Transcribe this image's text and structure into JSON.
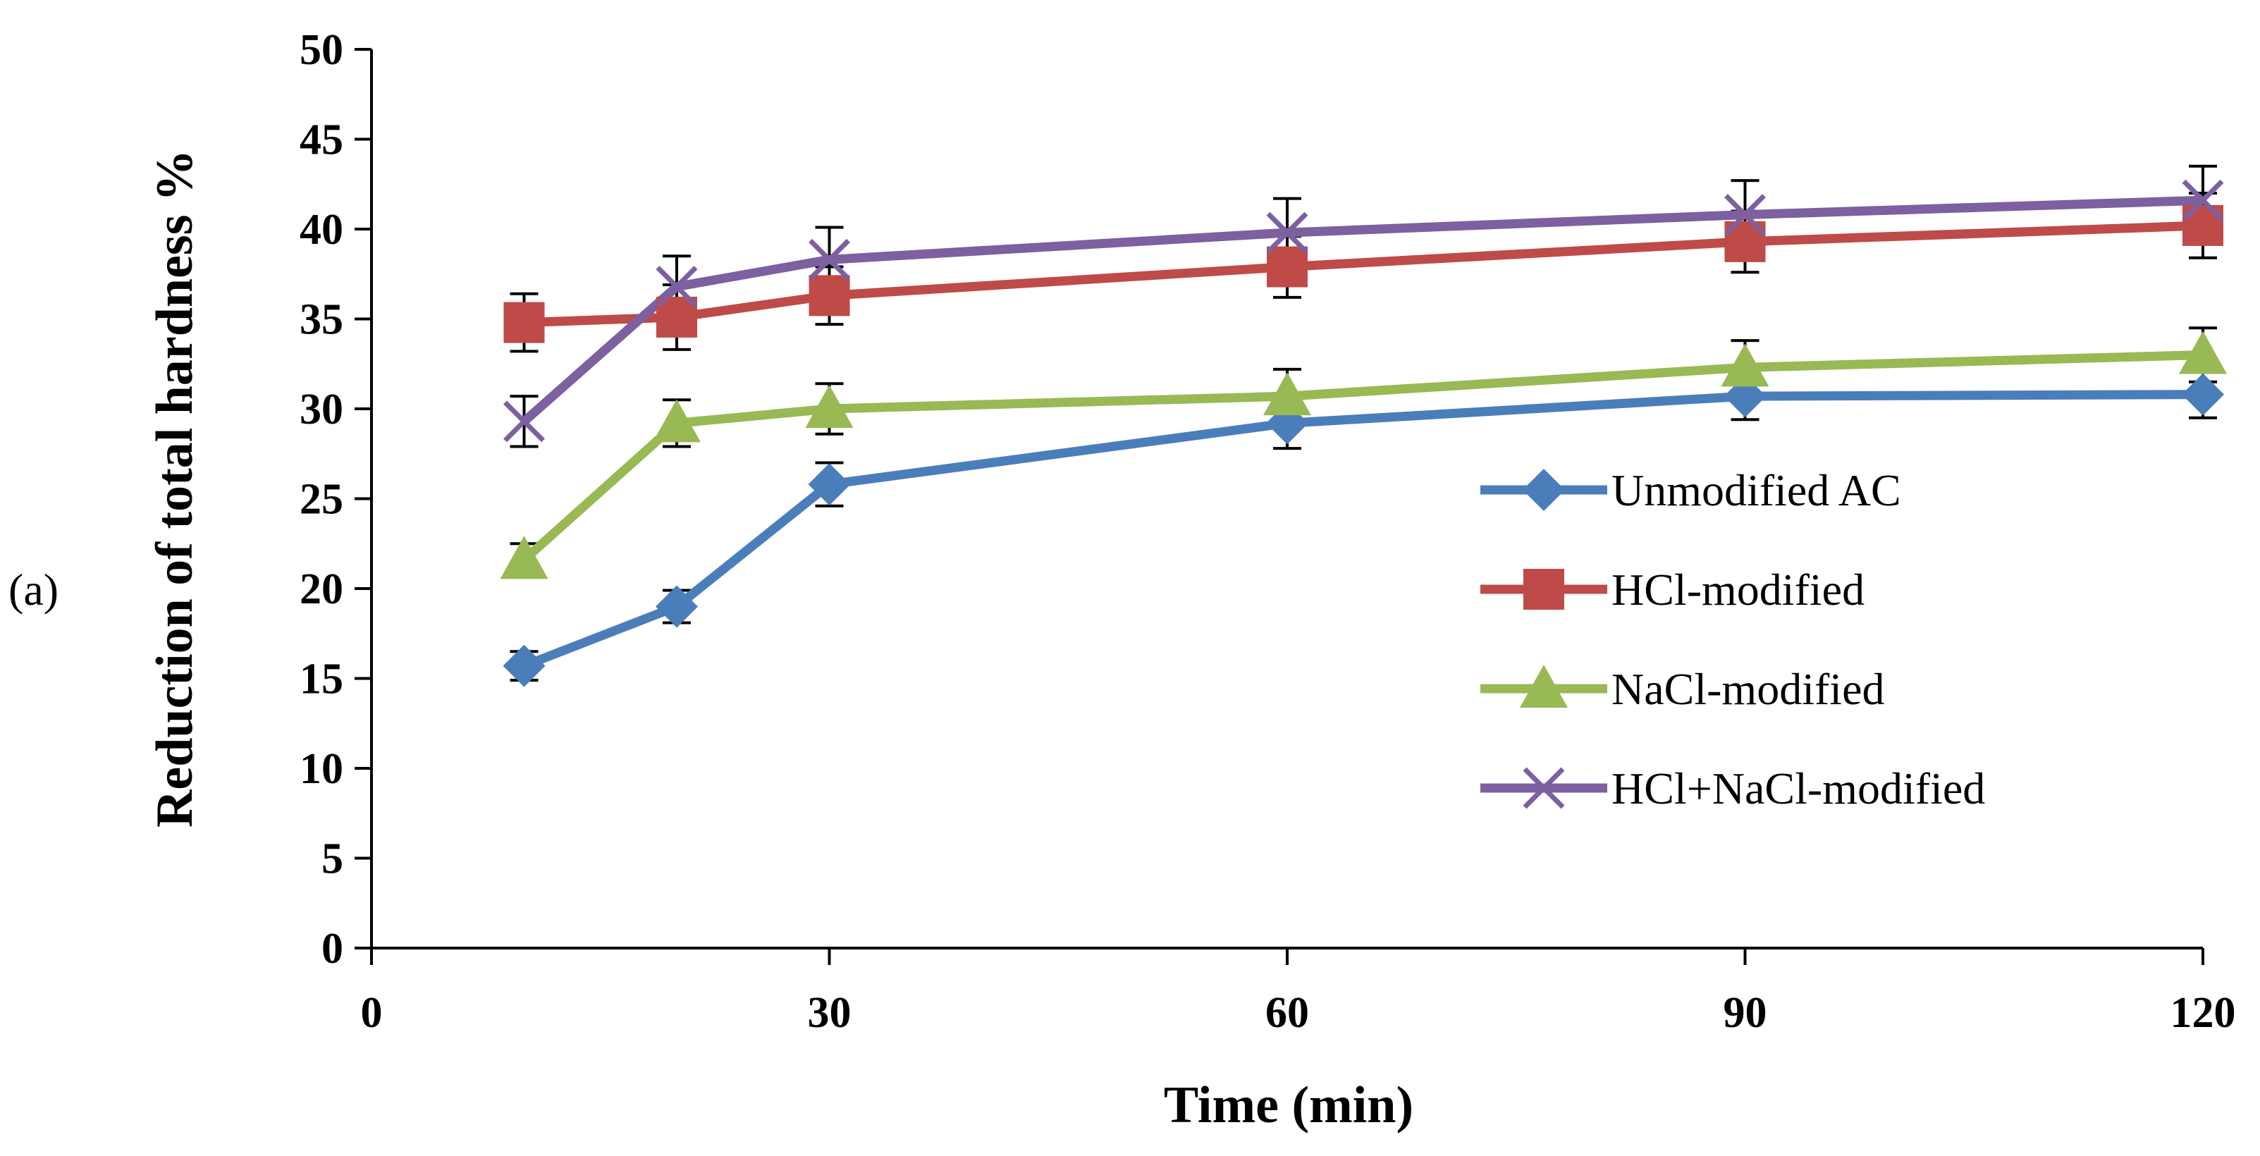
{
  "panel_label": "(a)",
  "chart_data": {
    "type": "line",
    "title": "",
    "xlabel": "Time (min)",
    "ylabel": "Reduction of total hardness %",
    "xlim": [
      0,
      120
    ],
    "ylim": [
      0,
      50
    ],
    "xticks": [
      0,
      30,
      60,
      90,
      120
    ],
    "yticks": [
      0,
      5,
      10,
      15,
      20,
      25,
      30,
      35,
      40,
      45,
      50
    ],
    "x": [
      10,
      20,
      30,
      60,
      90,
      120
    ],
    "grid": false,
    "legend_position": "right",
    "series": [
      {
        "name": "Unmodified AC",
        "color": "#4a7ebb",
        "marker": "diamond",
        "values": [
          15.7,
          19.0,
          25.8,
          29.2,
          30.7,
          30.8
        ],
        "errors": [
          0.8,
          0.9,
          1.2,
          1.4,
          1.3,
          1.3
        ]
      },
      {
        "name": "HCl-modified",
        "color": "#be4b48",
        "marker": "square",
        "values": [
          34.8,
          35.1,
          36.3,
          37.9,
          39.3,
          40.2
        ],
        "errors": [
          1.6,
          1.8,
          1.6,
          1.7,
          1.7,
          1.8
        ]
      },
      {
        "name": "NaCl-modified",
        "color": "#98b954",
        "marker": "triangle",
        "values": [
          21.6,
          29.2,
          30.0,
          30.7,
          32.3,
          33.0
        ],
        "errors": [
          0.9,
          1.3,
          1.4,
          1.5,
          1.5,
          1.5
        ]
      },
      {
        "name": "HCl+NaCl-modified",
        "color": "#7d60a0",
        "marker": "x",
        "values": [
          29.3,
          36.8,
          38.3,
          39.8,
          40.8,
          41.6
        ],
        "errors": [
          1.4,
          1.7,
          1.8,
          1.9,
          1.9,
          1.9
        ]
      }
    ]
  }
}
